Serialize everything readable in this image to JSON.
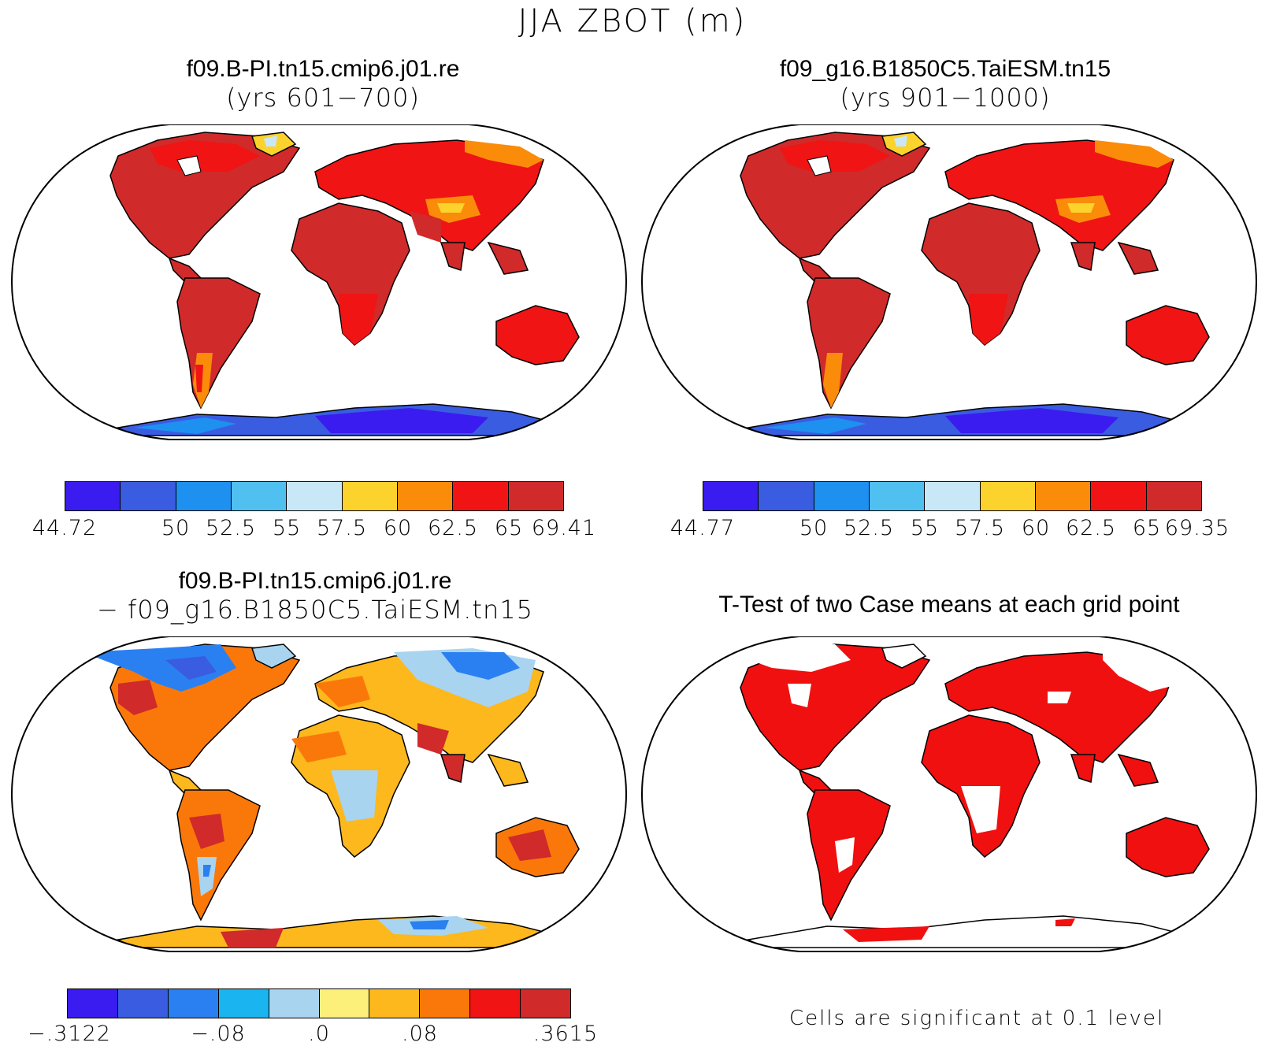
{
  "figure": {
    "title": "JJA ZBOT (m)"
  },
  "panels": {
    "top_left": {
      "title": "f09.B-PI.tn15.cmip6.j01.re",
      "subtitle": "(yrs 601−700)",
      "colors": [
        "#3a1cf0",
        "#3a5ce0",
        "#1e90f0",
        "#50c0f0",
        "#c8e8f8",
        "#fcd22c",
        "#fa8c0a",
        "#f01414",
        "#d02a2a"
      ],
      "labels": [
        "44.72",
        "50",
        "52.5",
        "55",
        "57.5",
        "60",
        "62.5",
        "65",
        "69.41"
      ]
    },
    "top_right": {
      "title": "f09_g16.B1850C5.TaiESM.tn15",
      "subtitle": "(yrs 901−1000)",
      "colors": [
        "#3a1cf0",
        "#3a5ce0",
        "#1e90f0",
        "#50c0f0",
        "#c8e8f8",
        "#fcd22c",
        "#fa8c0a",
        "#f01414",
        "#d02a2a"
      ],
      "labels": [
        "44.77",
        "50",
        "52.5",
        "55",
        "57.5",
        "60",
        "62.5",
        "65",
        "69.35"
      ]
    },
    "bottom_left": {
      "title": "f09.B-PI.tn15.cmip6.j01.re",
      "subtitle": "− f09_g16.B1850C5.TaiESM.tn15",
      "colors": [
        "#3a1cf0",
        "#3a5ce0",
        "#2a80f0",
        "#1ab4f0",
        "#a8d4f0",
        "#fcf07a",
        "#fcb81c",
        "#fa780a",
        "#f01414",
        "#d02a2a"
      ],
      "labels": [
        "−.3122",
        "−.08",
        ".0",
        ".08",
        ".3615"
      ]
    },
    "bottom_right": {
      "title": "T-Test of two Case means at each grid point",
      "note": "Cells are significant at 0.1 level",
      "colors": [
        "#f01010"
      ]
    }
  }
}
